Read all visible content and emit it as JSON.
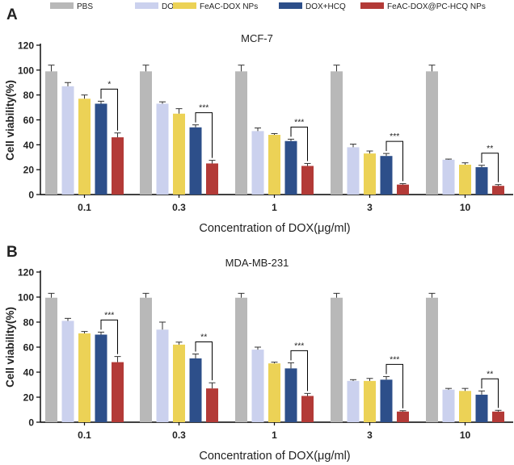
{
  "chart_data": [
    {
      "type": "bar",
      "panel_label": "A",
      "title": "MCF-7",
      "xlabel": "Concentration of DOX(μg/ml)",
      "ylabel": "Cell viability(%)",
      "ylim": [
        0,
        120
      ],
      "yticks": [
        "0",
        "20",
        "40",
        "60",
        "80",
        "100",
        "120"
      ],
      "categories": [
        "0.1",
        "0.3",
        "1",
        "3",
        "10"
      ],
      "series": [
        {
          "name": "PBS",
          "values": [
            99,
            99,
            99,
            99,
            99
          ],
          "errors": [
            5,
            5,
            5,
            5,
            5
          ]
        },
        {
          "name": "DOX",
          "values": [
            87,
            73,
            51,
            38,
            28
          ],
          "errors": [
            3,
            1.5,
            2.5,
            2.5,
            0.5
          ]
        },
        {
          "name": "FeAC-DOX NPs",
          "values": [
            77,
            65,
            48,
            33,
            24
          ],
          "errors": [
            3,
            4,
            1,
            2,
            1.5
          ]
        },
        {
          "name": "DOX+HCQ",
          "values": [
            73,
            54,
            43,
            31,
            22
          ],
          "errors": [
            2,
            2,
            1.5,
            2,
            1.5
          ]
        },
        {
          "name": "FeAC-DOX@PC-HCQ NPs",
          "values": [
            46,
            25,
            23,
            8,
            7
          ],
          "errors": [
            3.5,
            2.5,
            2,
            0.8,
            1
          ]
        }
      ],
      "significance": [
        "*",
        "***",
        "***",
        "***",
        "**"
      ]
    },
    {
      "type": "bar",
      "panel_label": "B",
      "title": "MDA-MB-231",
      "xlabel": "Concentration of DOX(μg/ml)",
      "ylabel": "Cell viability(%)",
      "ylim": [
        0,
        120
      ],
      "yticks": [
        "0",
        "20",
        "40",
        "60",
        "80",
        "100",
        "120"
      ],
      "categories": [
        "0.1",
        "0.3",
        "1",
        "3",
        "10"
      ],
      "series": [
        {
          "name": "PBS",
          "values": [
            99.5,
            99.5,
            99.5,
            99.5,
            99.5
          ],
          "errors": [
            3.5,
            3.5,
            3.5,
            3.5,
            3.5
          ]
        },
        {
          "name": "DOX",
          "values": [
            81,
            74,
            58,
            33,
            26
          ],
          "errors": [
            2,
            6,
            2,
            1,
            1
          ]
        },
        {
          "name": "FeAC-DOX NPs",
          "values": [
            71,
            62,
            47,
            33,
            25
          ],
          "errors": [
            1.5,
            2,
            1,
            2,
            2
          ]
        },
        {
          "name": "DOX+HCQ",
          "values": [
            70,
            51,
            43,
            34,
            22
          ],
          "errors": [
            2,
            3.5,
            4.5,
            2.5,
            3
          ]
        },
        {
          "name": "FeAC-DOX@PC-HCQ NPs",
          "values": [
            48,
            27,
            21,
            8.5,
            8.5
          ],
          "errors": [
            4.5,
            4.5,
            2,
            0.7,
            1
          ]
        }
      ],
      "significance": [
        "***",
        "**",
        "***",
        "***",
        "**"
      ]
    }
  ],
  "colors": {
    "PBS": "#b8b8b8",
    "DOX": "#cbd1ee",
    "FeAC-DOX NPs": "#ecd256",
    "DOX+HCQ": "#2d4f8a",
    "FeAC-DOX@PC-HCQ NPs": "#b33a37"
  }
}
